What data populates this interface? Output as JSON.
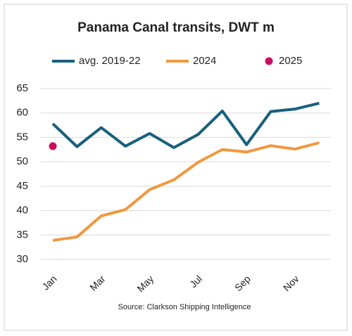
{
  "chart_data": {
    "type": "line",
    "title": "Panama Canal transits, DWT m",
    "source": "Source: Clarkson Shipping Intelligence",
    "categories": [
      "Jan",
      null,
      "Mar",
      null,
      "May",
      null,
      "Jul",
      null,
      "Sep",
      null,
      "Nov",
      null
    ],
    "series": [
      {
        "name": "avg. 2019-22",
        "color": "#17607d",
        "mode": "lines",
        "values": [
          57.8,
          53.1,
          57.0,
          53.2,
          55.8,
          52.9,
          55.6,
          60.4,
          53.5,
          60.3,
          60.8,
          62.0
        ]
      },
      {
        "name": "2024",
        "color": "#f0983e",
        "mode": "lines",
        "values": [
          33.9,
          34.6,
          38.9,
          40.2,
          44.3,
          46.3,
          49.9,
          52.5,
          52.0,
          53.3,
          52.6,
          53.9
        ]
      },
      {
        "name": "2025",
        "color": "#c8105f",
        "mode": "markers",
        "values": [
          53.2,
          null,
          null,
          null,
          null,
          null,
          null,
          null,
          null,
          null,
          null,
          null
        ]
      }
    ],
    "ylim": [
      30,
      65
    ],
    "yticks": [
      30,
      35,
      40,
      45,
      50,
      55,
      60,
      65
    ],
    "grid": true,
    "legend": "top"
  }
}
